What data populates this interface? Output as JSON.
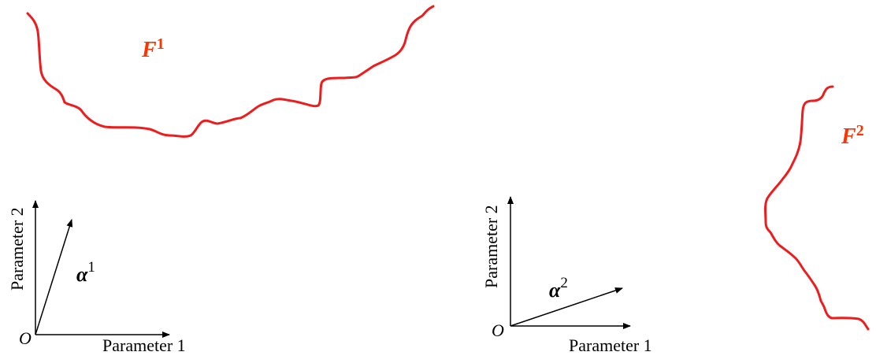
{
  "colors": {
    "curve": "#ee1c1c",
    "label_red": "#ff3300",
    "axis": "#000000"
  },
  "panel_1": {
    "curve_label": {
      "letter": "F",
      "superscript": "1"
    },
    "vector_label": {
      "letter": "α",
      "superscript": "1"
    },
    "origin_label": "O",
    "x_axis_label": "Parameter 1",
    "y_axis_label": "Parameter 2"
  },
  "panel_2": {
    "curve_label": {
      "letter": "F",
      "superscript": "2"
    },
    "vector_label": {
      "letter": "α",
      "superscript": "2"
    },
    "origin_label": "O",
    "x_axis_label": "Parameter 1",
    "y_axis_label": "Parameter 2"
  }
}
